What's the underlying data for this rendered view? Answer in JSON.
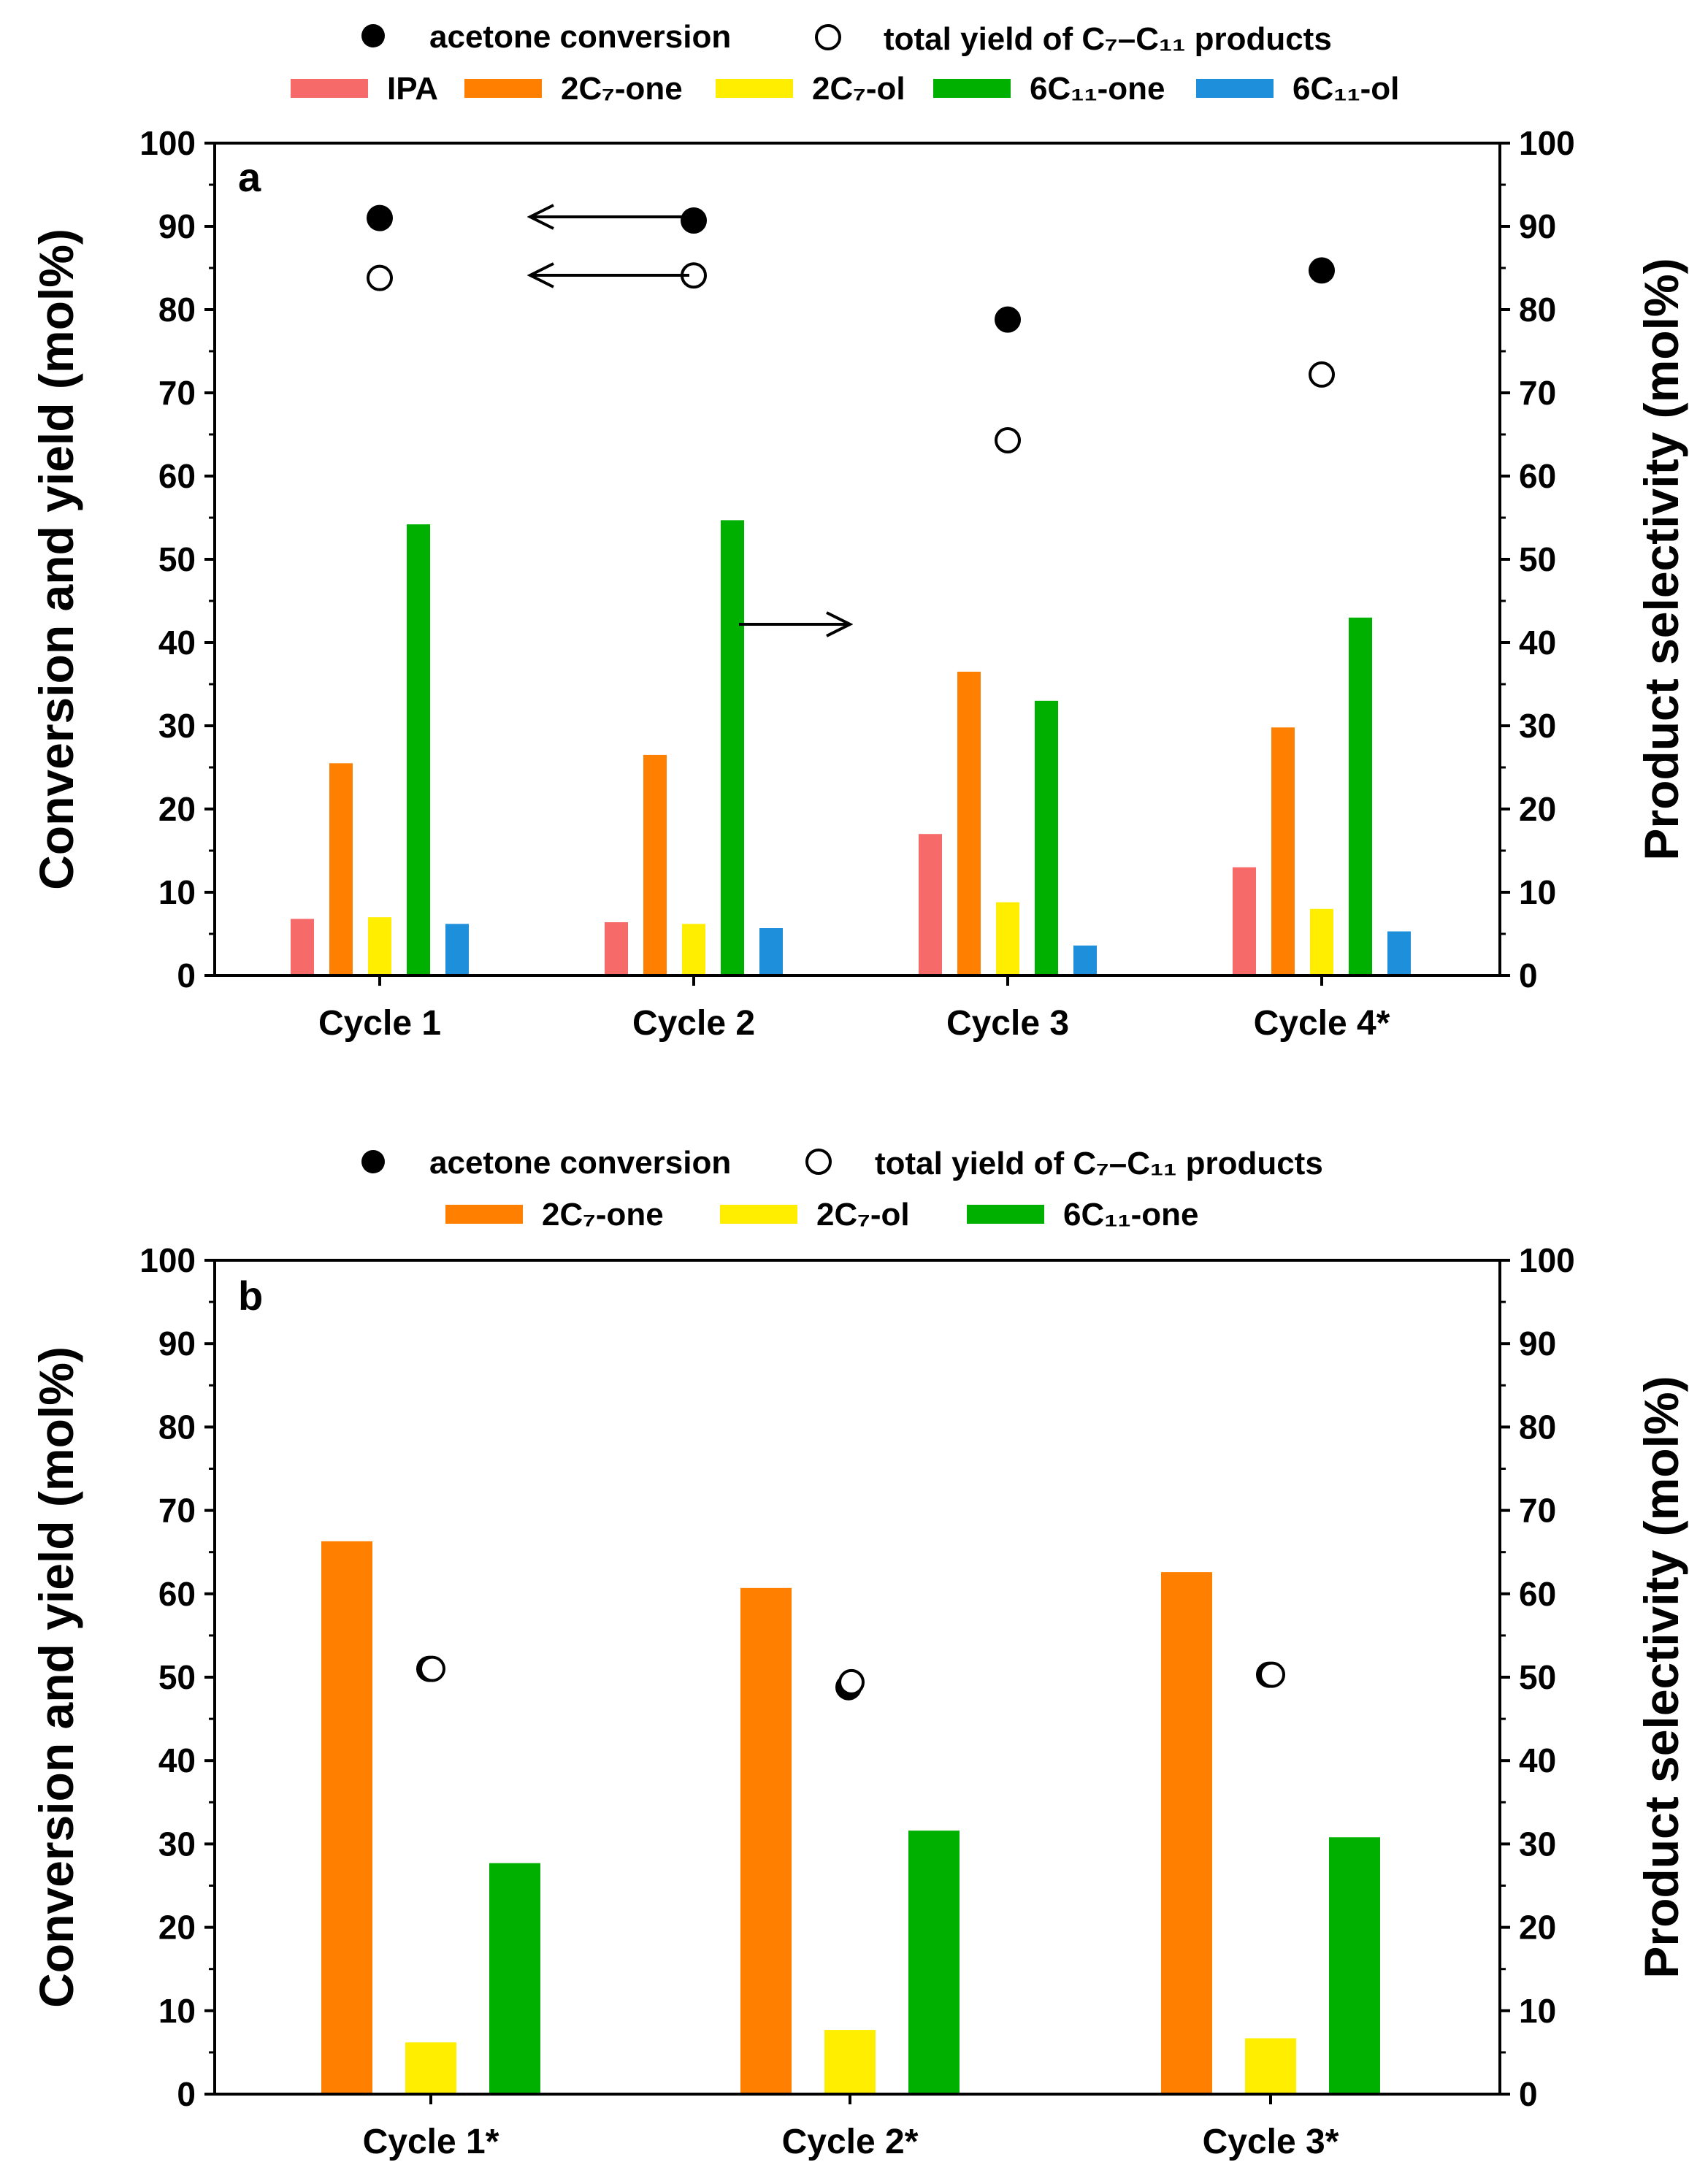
{
  "chart_data": [
    {
      "type": "bar",
      "panel_label": "a",
      "categories": [
        "Cycle 1",
        "Cycle 2",
        "Cycle 3",
        "Cycle 4*"
      ],
      "ylabel_left": "Conversion and yield (mol%)",
      "ylabel_right": "Product selectivity (mol%)",
      "ylim": [
        0,
        100
      ],
      "yticks": [
        "0",
        "10",
        "20",
        "30",
        "40",
        "50",
        "60",
        "70",
        "80",
        "90",
        "100"
      ],
      "legend": {
        "markers": [
          {
            "label": "acetone conversion",
            "style": "filled"
          },
          {
            "label": "total yield of C₇–C₁₁ products",
            "style": "open"
          }
        ],
        "bars": [
          {
            "label": "IPA",
            "color": "#f76a6a"
          },
          {
            "label": "2C₇-one",
            "color": "#ff7f00"
          },
          {
            "label": "2C₇-ol",
            "color": "#ffee00"
          },
          {
            "label": "6C₁₁-one",
            "color": "#00b000"
          },
          {
            "label": "6C₁₁-ol",
            "color": "#1e8fdb"
          }
        ]
      },
      "series": [
        {
          "name": "IPA",
          "axis": "right",
          "values": [
            6.8,
            6.4,
            17,
            13
          ]
        },
        {
          "name": "2C₇-one",
          "axis": "right",
          "values": [
            25.5,
            26.5,
            36.5,
            29.8
          ]
        },
        {
          "name": "2C₇-ol",
          "axis": "right",
          "values": [
            7,
            6.2,
            8.8,
            8
          ]
        },
        {
          "name": "6C₁₁-one",
          "axis": "right",
          "values": [
            54.2,
            54.7,
            33,
            43
          ]
        },
        {
          "name": "6C₁₁-ol",
          "axis": "right",
          "values": [
            6.2,
            5.7,
            3.6,
            5.3
          ]
        }
      ],
      "points": [
        {
          "name": "acetone conversion",
          "axis": "left",
          "values": [
            91,
            90.7,
            78.8,
            84.7
          ]
        },
        {
          "name": "total yield of C₇–C₁₁ products",
          "axis": "left",
          "values": [
            83.8,
            84.1,
            64.3,
            72.2
          ]
        }
      ],
      "annotations": [
        "arrow-left at 91",
        "arrow-left at 84",
        "arrow-right at 42"
      ]
    },
    {
      "type": "bar",
      "panel_label": "b",
      "categories": [
        "Cycle 1*",
        "Cycle 2*",
        "Cycle 3*"
      ],
      "ylabel_left": "Conversion and yield (mol%)",
      "ylabel_right": "Product selectivity (mol%)",
      "ylim": [
        0,
        100
      ],
      "yticks": [
        "0",
        "10",
        "20",
        "30",
        "40",
        "50",
        "60",
        "70",
        "80",
        "90",
        "100"
      ],
      "legend": {
        "markers": [
          {
            "label": "acetone conversion",
            "style": "filled"
          },
          {
            "label": "total yield of C₇–C₁₁ products",
            "style": "open"
          }
        ],
        "bars": [
          {
            "label": "2C₇-one",
            "color": "#ff7f00"
          },
          {
            "label": "2C₇-ol",
            "color": "#ffee00"
          },
          {
            "label": "6C₁₁-one",
            "color": "#00b000"
          }
        ]
      },
      "series": [
        {
          "name": "2C₇-one",
          "axis": "right",
          "values": [
            66.3,
            60.7,
            62.6
          ]
        },
        {
          "name": "2C₇-ol",
          "axis": "right",
          "values": [
            6.2,
            7.7,
            6.7
          ]
        },
        {
          "name": "6C₁₁-one",
          "axis": "right",
          "values": [
            27.7,
            31.6,
            30.8
          ]
        }
      ],
      "points": [
        {
          "name": "acetone conversion",
          "axis": "left",
          "values": [
            51,
            48.8,
            50.3
          ]
        },
        {
          "name": "total yield of C₇–C₁₁ products",
          "axis": "left",
          "values": [
            51,
            49.4,
            50.3
          ]
        }
      ]
    }
  ]
}
